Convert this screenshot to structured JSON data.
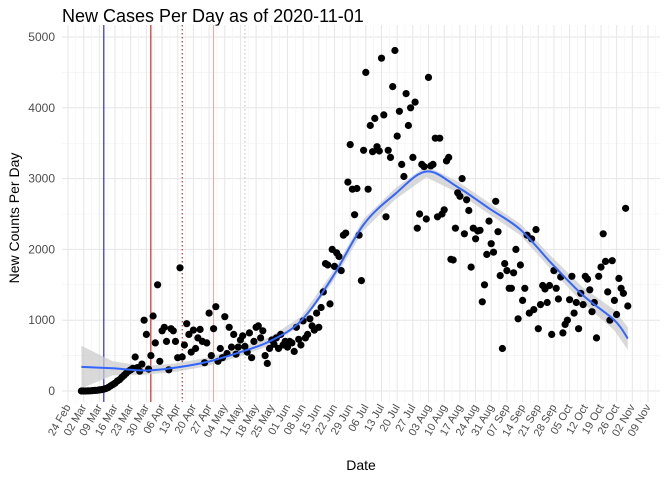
{
  "chart_data": {
    "type": "scatter",
    "title": "New Cases Per Day as of 2020-11-01",
    "xlabel": "Date",
    "ylabel": "New Counts Per Day",
    "x_range": [
      "2020-02-24",
      "2020-11-09"
    ],
    "ylim": [
      -100,
      5050
    ],
    "y_ticks": [
      0,
      1000,
      2000,
      3000,
      4000,
      5000
    ],
    "x_ticks": [
      "24 Feb",
      "02 Mar",
      "09 Mar",
      "16 Mar",
      "23 Mar",
      "30 Mar",
      "06 Apr",
      "13 Apr",
      "20 Apr",
      "27 Apr",
      "04 May",
      "11 May",
      "18 May",
      "25 May",
      "01 Jun",
      "08 Jun",
      "15 Jun",
      "22 Jun",
      "29 Jun",
      "06 Jul",
      "13 Jul",
      "20 Jul",
      "27 Jul",
      "03 Aug",
      "10 Aug",
      "17 Aug",
      "24 Aug",
      "31 Aug",
      "07 Sep",
      "14 Sep",
      "21 Sep",
      "28 Sep",
      "05 Oct",
      "12 Oct",
      "19 Oct",
      "26 Oct",
      "02 Nov",
      "09 Nov"
    ],
    "grid": true,
    "vertical_lines": [
      {
        "date": "2020-03-11",
        "color": "#0000cc",
        "style": "solid"
      },
      {
        "date": "2020-04-01",
        "color": "#cc0000",
        "style": "solid"
      },
      {
        "date": "2020-04-15",
        "color": "#cc0000",
        "style": "dotted"
      },
      {
        "date": "2020-04-29",
        "color": "#f4a0a0",
        "style": "solid"
      },
      {
        "date": "2020-05-13",
        "color": "#bbbbbb",
        "style": "dotted"
      }
    ],
    "point_color": "#000000",
    "smooth_color": "#3366ff",
    "ribbon_color": "#cccccc",
    "points": [
      [
        "2020-03-01",
        0
      ],
      [
        "2020-03-02",
        0
      ],
      [
        "2020-03-03",
        0
      ],
      [
        "2020-03-04",
        2
      ],
      [
        "2020-03-05",
        3
      ],
      [
        "2020-03-06",
        5
      ],
      [
        "2020-03-07",
        8
      ],
      [
        "2020-03-08",
        10
      ],
      [
        "2020-03-09",
        15
      ],
      [
        "2020-03-10",
        20
      ],
      [
        "2020-03-11",
        25
      ],
      [
        "2020-03-12",
        35
      ],
      [
        "2020-03-13",
        50
      ],
      [
        "2020-03-14",
        70
      ],
      [
        "2020-03-15",
        90
      ],
      [
        "2020-03-16",
        110
      ],
      [
        "2020-03-17",
        140
      ],
      [
        "2020-03-18",
        160
      ],
      [
        "2020-03-19",
        190
      ],
      [
        "2020-03-20",
        220
      ],
      [
        "2020-03-21",
        250
      ],
      [
        "2020-03-22",
        280
      ],
      [
        "2020-03-23",
        300
      ],
      [
        "2020-03-24",
        320
      ],
      [
        "2020-03-25",
        480
      ],
      [
        "2020-03-26",
        330
      ],
      [
        "2020-03-27",
        280
      ],
      [
        "2020-03-28",
        380
      ],
      [
        "2020-03-29",
        1000
      ],
      [
        "2020-03-30",
        800
      ],
      [
        "2020-03-31",
        310
      ],
      [
        "2020-04-01",
        500
      ],
      [
        "2020-04-02",
        1060
      ],
      [
        "2020-04-03",
        680
      ],
      [
        "2020-04-04",
        1500
      ],
      [
        "2020-04-05",
        420
      ],
      [
        "2020-04-06",
        850
      ],
      [
        "2020-04-07",
        900
      ],
      [
        "2020-04-08",
        700
      ],
      [
        "2020-04-09",
        300
      ],
      [
        "2020-04-10",
        880
      ],
      [
        "2020-04-11",
        850
      ],
      [
        "2020-04-12",
        700
      ],
      [
        "2020-04-13",
        470
      ],
      [
        "2020-04-14",
        1740
      ],
      [
        "2020-04-15",
        480
      ],
      [
        "2020-04-16",
        650
      ],
      [
        "2020-04-17",
        950
      ],
      [
        "2020-04-18",
        800
      ],
      [
        "2020-04-19",
        550
      ],
      [
        "2020-04-20",
        860
      ],
      [
        "2020-04-21",
        600
      ],
      [
        "2020-04-22",
        750
      ],
      [
        "2020-04-23",
        870
      ],
      [
        "2020-04-24",
        700
      ],
      [
        "2020-04-25",
        400
      ],
      [
        "2020-04-26",
        680
      ],
      [
        "2020-04-27",
        1100
      ],
      [
        "2020-04-28",
        500
      ],
      [
        "2020-04-29",
        880
      ],
      [
        "2020-04-30",
        1190
      ],
      [
        "2020-05-01",
        420
      ],
      [
        "2020-05-02",
        600
      ],
      [
        "2020-05-03",
        470
      ],
      [
        "2020-05-04",
        1050
      ],
      [
        "2020-05-05",
        530
      ],
      [
        "2020-05-06",
        900
      ],
      [
        "2020-05-07",
        620
      ],
      [
        "2020-05-08",
        800
      ],
      [
        "2020-05-09",
        520
      ],
      [
        "2020-05-10",
        620
      ],
      [
        "2020-05-11",
        720
      ],
      [
        "2020-05-12",
        780
      ],
      [
        "2020-05-13",
        630
      ],
      [
        "2020-05-14",
        550
      ],
      [
        "2020-05-15",
        820
      ],
      [
        "2020-05-16",
        470
      ],
      [
        "2020-05-17",
        700
      ],
      [
        "2020-05-18",
        900
      ],
      [
        "2020-05-19",
        920
      ],
      [
        "2020-05-20",
        750
      ],
      [
        "2020-05-21",
        850
      ],
      [
        "2020-05-22",
        500
      ],
      [
        "2020-05-23",
        390
      ],
      [
        "2020-05-24",
        600
      ],
      [
        "2020-05-25",
        720
      ],
      [
        "2020-05-26",
        660
      ],
      [
        "2020-05-27",
        750
      ],
      [
        "2020-05-28",
        600
      ],
      [
        "2020-05-29",
        800
      ],
      [
        "2020-05-30",
        650
      ],
      [
        "2020-05-31",
        700
      ],
      [
        "2020-06-01",
        620
      ],
      [
        "2020-06-02",
        700
      ],
      [
        "2020-06-03",
        680
      ],
      [
        "2020-06-04",
        560
      ],
      [
        "2020-06-05",
        900
      ],
      [
        "2020-06-06",
        730
      ],
      [
        "2020-06-07",
        650
      ],
      [
        "2020-06-08",
        990
      ],
      [
        "2020-06-09",
        750
      ],
      [
        "2020-06-10",
        800
      ],
      [
        "2020-06-11",
        1020
      ],
      [
        "2020-06-12",
        920
      ],
      [
        "2020-06-13",
        860
      ],
      [
        "2020-06-14",
        1100
      ],
      [
        "2020-06-15",
        900
      ],
      [
        "2020-06-16",
        1180
      ],
      [
        "2020-06-17",
        1400
      ],
      [
        "2020-06-18",
        1800
      ],
      [
        "2020-06-19",
        1780
      ],
      [
        "2020-06-20",
        1230
      ],
      [
        "2020-06-21",
        2000
      ],
      [
        "2020-06-22",
        1760
      ],
      [
        "2020-06-23",
        1950
      ],
      [
        "2020-06-24",
        1900
      ],
      [
        "2020-06-25",
        1700
      ],
      [
        "2020-06-26",
        2200
      ],
      [
        "2020-06-27",
        2230
      ],
      [
        "2020-06-28",
        2950
      ],
      [
        "2020-06-29",
        3480
      ],
      [
        "2020-06-30",
        2850
      ],
      [
        "2020-07-01",
        2490
      ],
      [
        "2020-07-02",
        2860
      ],
      [
        "2020-07-03",
        2200
      ],
      [
        "2020-07-04",
        1560
      ],
      [
        "2020-07-05",
        3400
      ],
      [
        "2020-07-06",
        4500
      ],
      [
        "2020-07-07",
        2850
      ],
      [
        "2020-07-08",
        3750
      ],
      [
        "2020-07-09",
        3380
      ],
      [
        "2020-07-10",
        3850
      ],
      [
        "2020-07-11",
        3450
      ],
      [
        "2020-07-12",
        3390
      ],
      [
        "2020-07-13",
        4700
      ],
      [
        "2020-07-14",
        3900
      ],
      [
        "2020-07-15",
        2460
      ],
      [
        "2020-07-16",
        3400
      ],
      [
        "2020-07-17",
        3300
      ],
      [
        "2020-07-18",
        4300
      ],
      [
        "2020-07-19",
        4810
      ],
      [
        "2020-07-20",
        3600
      ],
      [
        "2020-07-21",
        3950
      ],
      [
        "2020-07-22",
        3200
      ],
      [
        "2020-07-23",
        3030
      ],
      [
        "2020-07-24",
        4200
      ],
      [
        "2020-07-25",
        3750
      ],
      [
        "2020-07-26",
        4000
      ],
      [
        "2020-07-27",
        3300
      ],
      [
        "2020-07-28",
        4080
      ],
      [
        "2020-07-29",
        2300
      ],
      [
        "2020-07-30",
        2500
      ],
      [
        "2020-07-31",
        3200
      ],
      [
        "2020-08-01",
        3170
      ],
      [
        "2020-08-02",
        2430
      ],
      [
        "2020-08-03",
        4430
      ],
      [
        "2020-08-04",
        3180
      ],
      [
        "2020-08-05",
        3200
      ],
      [
        "2020-08-06",
        3570
      ],
      [
        "2020-08-07",
        2460
      ],
      [
        "2020-08-08",
        3570
      ],
      [
        "2020-08-09",
        2500
      ],
      [
        "2020-08-10",
        2560
      ],
      [
        "2020-08-11",
        3250
      ],
      [
        "2020-08-12",
        3300
      ],
      [
        "2020-08-13",
        1860
      ],
      [
        "2020-08-14",
        1850
      ],
      [
        "2020-08-15",
        2300
      ],
      [
        "2020-08-16",
        2800
      ],
      [
        "2020-08-17",
        2750
      ],
      [
        "2020-08-18",
        3000
      ],
      [
        "2020-08-19",
        2220
      ],
      [
        "2020-08-20",
        2700
      ],
      [
        "2020-08-21",
        2550
      ],
      [
        "2020-08-22",
        1750
      ],
      [
        "2020-08-23",
        2300
      ],
      [
        "2020-08-24",
        2150
      ],
      [
        "2020-08-25",
        2260
      ],
      [
        "2020-08-26",
        2270
      ],
      [
        "2020-08-27",
        1260
      ],
      [
        "2020-08-28",
        1500
      ],
      [
        "2020-08-29",
        1930
      ],
      [
        "2020-08-30",
        2400
      ],
      [
        "2020-08-31",
        2080
      ],
      [
        "2020-09-01",
        1960
      ],
      [
        "2020-09-02",
        2680
      ],
      [
        "2020-09-03",
        2250
      ],
      [
        "2020-09-04",
        1630
      ],
      [
        "2020-09-05",
        600
      ],
      [
        "2020-09-06",
        1800
      ],
      [
        "2020-09-07",
        1700
      ],
      [
        "2020-09-08",
        1450
      ],
      [
        "2020-09-09",
        1450
      ],
      [
        "2020-09-10",
        1670
      ],
      [
        "2020-09-11",
        2000
      ],
      [
        "2020-09-12",
        1020
      ],
      [
        "2020-09-13",
        1780
      ],
      [
        "2020-09-14",
        1280
      ],
      [
        "2020-09-15",
        1450
      ],
      [
        "2020-09-16",
        2200
      ],
      [
        "2020-09-17",
        1100
      ],
      [
        "2020-09-18",
        2150
      ],
      [
        "2020-09-19",
        1150
      ],
      [
        "2020-09-20",
        2280
      ],
      [
        "2020-09-21",
        880
      ],
      [
        "2020-09-22",
        1220
      ],
      [
        "2020-09-23",
        1490
      ],
      [
        "2020-09-24",
        1440
      ],
      [
        "2020-09-25",
        1250
      ],
      [
        "2020-09-26",
        1490
      ],
      [
        "2020-09-27",
        800
      ],
      [
        "2020-09-28",
        1700
      ],
      [
        "2020-09-29",
        1450
      ],
      [
        "2020-09-30",
        1300
      ],
      [
        "2020-10-01",
        1610
      ],
      [
        "2020-10-02",
        820
      ],
      [
        "2020-10-03",
        940
      ],
      [
        "2020-10-04",
        1000
      ],
      [
        "2020-10-05",
        1290
      ],
      [
        "2020-10-06",
        1620
      ],
      [
        "2020-10-07",
        1100
      ],
      [
        "2020-10-08",
        1250
      ],
      [
        "2020-10-09",
        880
      ],
      [
        "2020-10-10",
        1380
      ],
      [
        "2020-10-11",
        1220
      ],
      [
        "2020-10-12",
        1620
      ],
      [
        "2020-10-13",
        1580
      ],
      [
        "2020-10-14",
        1430
      ],
      [
        "2020-10-15",
        1120
      ],
      [
        "2020-10-16",
        1250
      ],
      [
        "2020-10-17",
        750
      ],
      [
        "2020-10-18",
        1620
      ],
      [
        "2020-10-19",
        1750
      ],
      [
        "2020-10-20",
        2220
      ],
      [
        "2020-10-21",
        1830
      ],
      [
        "2020-10-22",
        1400
      ],
      [
        "2020-10-23",
        1000
      ],
      [
        "2020-10-24",
        1840
      ],
      [
        "2020-10-25",
        1280
      ],
      [
        "2020-10-26",
        1080
      ],
      [
        "2020-10-27",
        1590
      ],
      [
        "2020-10-28",
        1450
      ],
      [
        "2020-10-29",
        1380
      ],
      [
        "2020-10-30",
        2580
      ],
      [
        "2020-10-31",
        1200
      ]
    ],
    "smooth": [
      [
        "2020-03-01",
        340
      ],
      [
        "2020-03-15",
        320
      ],
      [
        "2020-03-29",
        290
      ],
      [
        "2020-04-12",
        330
      ],
      [
        "2020-04-26",
        410
      ],
      [
        "2020-05-10",
        540
      ],
      [
        "2020-05-24",
        700
      ],
      [
        "2020-06-07",
        990
      ],
      [
        "2020-06-21",
        1600
      ],
      [
        "2020-07-05",
        2350
      ],
      [
        "2020-07-19",
        2780
      ],
      [
        "2020-08-02",
        3100
      ],
      [
        "2020-08-16",
        2880
      ],
      [
        "2020-08-30",
        2580
      ],
      [
        "2020-09-13",
        2280
      ],
      [
        "2020-09-27",
        1800
      ],
      [
        "2020-10-11",
        1350
      ],
      [
        "2020-10-25",
        1000
      ],
      [
        "2020-10-31",
        740
      ]
    ],
    "ribbon_halfwidth": [
      [
        "2020-03-01",
        300
      ],
      [
        "2020-03-15",
        100
      ],
      [
        "2020-03-29",
        60
      ],
      [
        "2020-04-26",
        60
      ],
      [
        "2020-06-07",
        60
      ],
      [
        "2020-07-05",
        80
      ],
      [
        "2020-08-02",
        80
      ],
      [
        "2020-09-13",
        80
      ],
      [
        "2020-10-11",
        110
      ],
      [
        "2020-10-31",
        160
      ]
    ]
  }
}
